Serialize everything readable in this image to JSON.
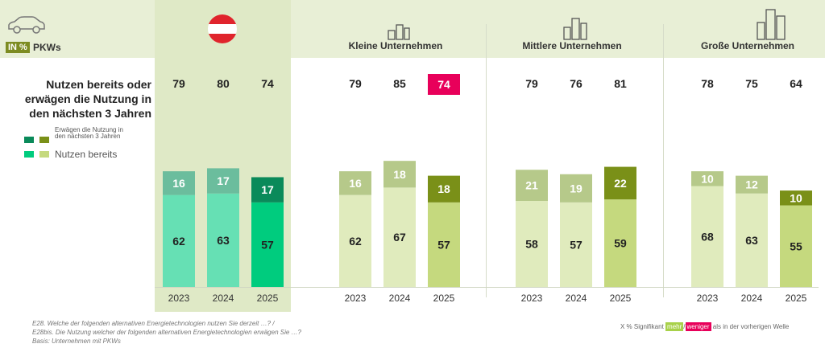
{
  "header": {
    "unit_badge": "IN %",
    "category": "PKWs",
    "groups": [
      "Kleine Unternehmen",
      "Mittlere Unternehmen",
      "Große Unternehmen"
    ]
  },
  "question": "Nutzen bereits oder erwägen die Nutzung in den nächsten 3 Jahren",
  "legend": {
    "consider": "Erwägen die Nutzung in den nächsten 3 Jahren",
    "using": "Nutzen bereits"
  },
  "chart_data": {
    "type": "bar",
    "stacked": true,
    "groups": [
      "Österreich",
      "Kleine Unternehmen",
      "Mittlere Unternehmen",
      "Große Unternehmen"
    ],
    "categories": [
      "2023",
      "2024",
      "2025"
    ],
    "series": [
      {
        "name": "Nutzen bereits",
        "values": [
          [
            62,
            63,
            57
          ],
          [
            62,
            67,
            57
          ],
          [
            58,
            57,
            59
          ],
          [
            68,
            63,
            55
          ]
        ]
      },
      {
        "name": "Erwägen die Nutzung in den nächsten 3 Jahren",
        "values": [
          [
            16,
            17,
            17
          ],
          [
            16,
            18,
            18
          ],
          [
            21,
            19,
            22
          ],
          [
            10,
            12,
            10
          ]
        ]
      }
    ],
    "totals": [
      [
        79,
        80,
        74
      ],
      [
        79,
        85,
        74
      ],
      [
        79,
        76,
        81
      ],
      [
        78,
        75,
        64
      ]
    ],
    "ylim": [
      0,
      100
    ],
    "colors": {
      "at_using_light": "#66e0b4",
      "at_consider_light": "#6bbd9d",
      "at_using_2025": "#00cc7e",
      "at_consider_2025": "#0a8a5a",
      "using_light": "#e0ebbd",
      "consider_light": "#b6c98a",
      "using_2025": "#c5d97e",
      "consider_2025": "#7a9018",
      "significant_less": "#e8005a",
      "significant_more": "#a8d14a"
    }
  },
  "footer": {
    "line1": "E28. Welche der folgenden alternativen Energietechnologien nutzen Sie derzeit …? /",
    "line2": "E28bis. Die Nutzung welcher der folgenden alternativen Energietechnologien erwägen Sie …?",
    "line3": "Basis: Unternehmen mit PKWs",
    "sig_prefix": "X % Signifikant",
    "sig_more": "mehr",
    "sig_slash": "/",
    "sig_less": "weniger",
    "sig_suffix": "als in der vorherigen Welle"
  }
}
